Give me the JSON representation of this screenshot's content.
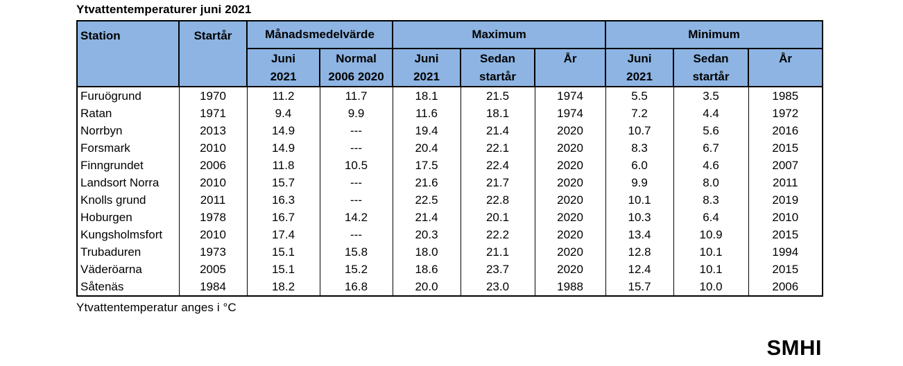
{
  "colors": {
    "header_bg": "#8DB4E2",
    "border": "#000000",
    "text": "#000000",
    "background": "#FFFFFF"
  },
  "footnote": "Ytvattentemperatur anges i °C",
  "logo_text": "SMHI",
  "chart_data": {
    "type": "table",
    "title": "Ytvattentemperaturer juni 2021",
    "unit_note": "Ytvattentemperatur anges i °C",
    "missing_value_marker": "---",
    "header_groups": [
      {
        "label": "Station",
        "rowspan": 2
      },
      {
        "label": "Startår",
        "rowspan": 2
      },
      {
        "label": "Månadsmedelvärde",
        "colspan": 2
      },
      {
        "label": "Maximum",
        "colspan": 3
      },
      {
        "label": "Minimum",
        "colspan": 3
      }
    ],
    "sub_headers": [
      "Juni\n2021",
      "Normal\n2006 2020",
      "Juni\n2021",
      "Sedan\nstartår",
      "År",
      "Juni\n2021",
      "Sedan\nstartår",
      "År"
    ],
    "columns": [
      "Station",
      "Startår",
      "Månadsmedelvärde Juni 2021",
      "Månadsmedelvärde Normal 2006 2020",
      "Maximum Juni 2021",
      "Maximum Sedan startår",
      "Maximum År",
      "Minimum Juni 2021",
      "Minimum Sedan startår",
      "Minimum År"
    ],
    "rows": [
      [
        "Furuögrund",
        "1970",
        "11.2",
        "11.7",
        "18.1",
        "21.5",
        "1974",
        "5.5",
        "3.5",
        "1985"
      ],
      [
        "Ratan",
        "1971",
        "9.4",
        "9.9",
        "11.6",
        "18.1",
        "1974",
        "7.2",
        "4.4",
        "1972"
      ],
      [
        "Norrbyn",
        "2013",
        "14.9",
        "---",
        "19.4",
        "21.4",
        "2020",
        "10.7",
        "5.6",
        "2016"
      ],
      [
        "Forsmark",
        "2010",
        "14.9",
        "---",
        "20.4",
        "22.1",
        "2020",
        "8.3",
        "6.7",
        "2015"
      ],
      [
        "Finngrundet",
        "2006",
        "11.8",
        "10.5",
        "17.5",
        "22.4",
        "2020",
        "6.0",
        "4.6",
        "2007"
      ],
      [
        "Landsort Norra",
        "2010",
        "15.7",
        "---",
        "21.6",
        "21.7",
        "2020",
        "9.9",
        "8.0",
        "2011"
      ],
      [
        "Knolls grund",
        "2011",
        "16.3",
        "---",
        "22.5",
        "22.8",
        "2020",
        "10.1",
        "8.3",
        "2019"
      ],
      [
        "Hoburgen",
        "1978",
        "16.7",
        "14.2",
        "21.4",
        "20.1",
        "2020",
        "10.3",
        "6.4",
        "2010"
      ],
      [
        "Kungsholmsfort",
        "2010",
        "17.4",
        "---",
        "20.3",
        "22.2",
        "2020",
        "13.4",
        "10.9",
        "2015"
      ],
      [
        "Trubaduren",
        "1973",
        "15.1",
        "15.8",
        "18.0",
        "21.1",
        "2020",
        "12.8",
        "10.1",
        "1994"
      ],
      [
        "Väderöarna",
        "2005",
        "15.1",
        "15.2",
        "18.6",
        "23.7",
        "2020",
        "12.4",
        "10.1",
        "2015"
      ],
      [
        "Såtenäs",
        "1984",
        "18.2",
        "16.8",
        "20.0",
        "23.0",
        "1988",
        "15.7",
        "10.0",
        "2006"
      ]
    ]
  }
}
